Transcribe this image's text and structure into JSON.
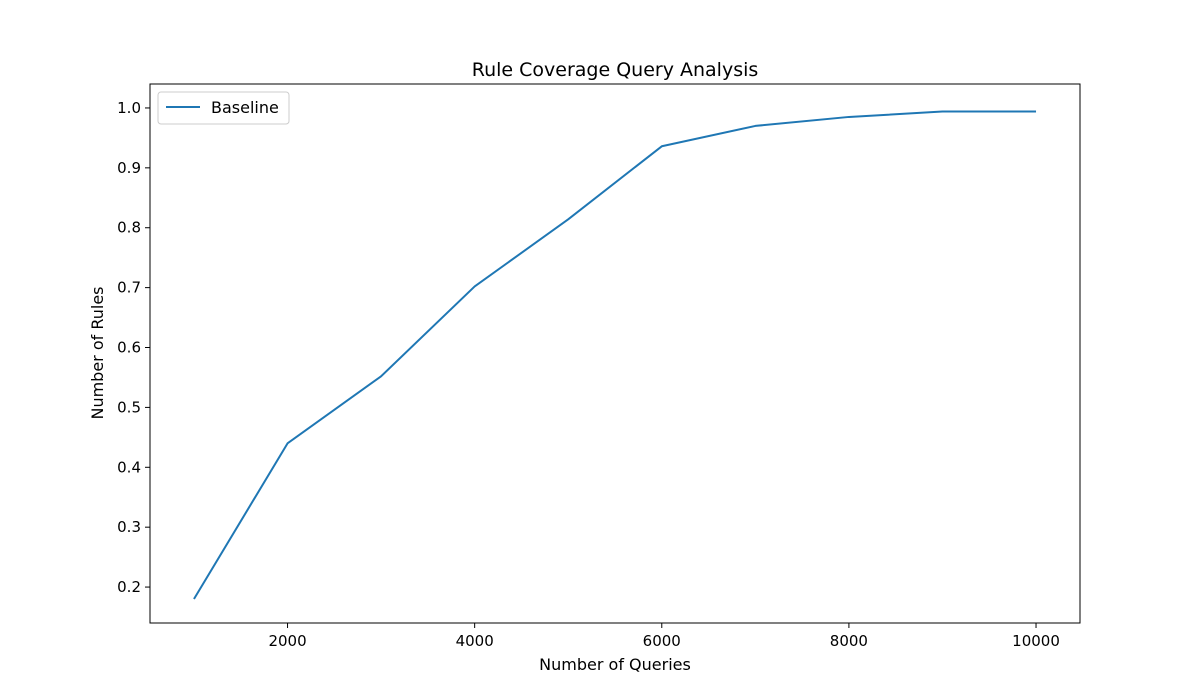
{
  "chart_data": {
    "type": "line",
    "title": "Rule Coverage Query Analysis",
    "xlabel": "Number of Queries",
    "ylabel": "Number of Rules",
    "xlim": [
      530,
      10470
    ],
    "ylim": [
      0.14,
      1.04
    ],
    "x_ticks": [
      2000,
      4000,
      6000,
      8000,
      10000
    ],
    "y_ticks": [
      0.2,
      0.3,
      0.4,
      0.5,
      0.6,
      0.7,
      0.8,
      0.9,
      1.0
    ],
    "x_tick_labels": [
      "2000",
      "4000",
      "6000",
      "8000",
      "10000"
    ],
    "y_tick_labels": [
      "0.2",
      "0.3",
      "0.4",
      "0.5",
      "0.6",
      "0.7",
      "0.8",
      "0.9",
      "1.0"
    ],
    "grid": false,
    "legend_position": "upper-left",
    "series": [
      {
        "name": "Baseline",
        "color": "#1f77b4",
        "x": [
          1000,
          2000,
          3000,
          4000,
          5000,
          6000,
          7000,
          8000,
          9000,
          10000
        ],
        "values": [
          0.18,
          0.44,
          0.552,
          0.702,
          0.814,
          0.936,
          0.97,
          0.985,
          0.994,
          0.994
        ]
      }
    ]
  }
}
